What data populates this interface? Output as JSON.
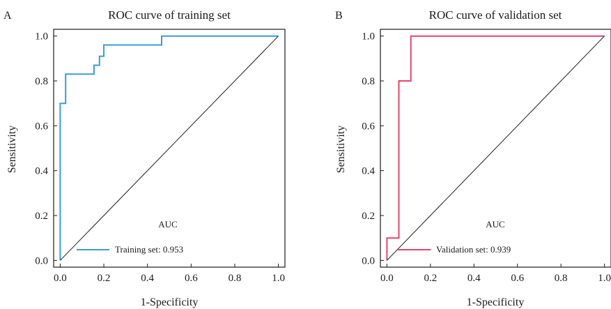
{
  "chart_data": [
    {
      "type": "line",
      "panel_label": "A",
      "title": "ROC curve of training set",
      "xlabel": "1-Specificity",
      "ylabel": "Sensitivity",
      "xlim": [
        -0.03,
        1.03
      ],
      "ylim": [
        -0.03,
        1.03
      ],
      "xticks": [
        "0.0",
        "0.2",
        "0.4",
        "0.6",
        "0.8",
        "1.0"
      ],
      "yticks": [
        "0.0",
        "0.2",
        "0.4",
        "0.6",
        "0.8",
        "1.0"
      ],
      "grid": false,
      "legend_title": "AUC",
      "legend_position": "bottom-right",
      "series": [
        {
          "name": "Training set: 0.953",
          "color": "#3a9bd9",
          "x": [
            0.0,
            0.0,
            0.0,
            0.0,
            0.0,
            0.025,
            0.025,
            0.025,
            0.155,
            0.155,
            0.18,
            0.18,
            0.2,
            0.2,
            0.2,
            0.465,
            0.465,
            1.0
          ],
          "y": [
            0.0,
            0.6,
            0.7,
            0.7,
            0.7,
            0.7,
            0.83,
            0.83,
            0.83,
            0.87,
            0.87,
            0.91,
            0.91,
            0.96,
            0.96,
            0.96,
            1.0,
            1.0
          ]
        },
        {
          "name": "",
          "color": "#1a1a1a",
          "x": [
            0.0,
            1.0
          ],
          "y": [
            0.0,
            1.0
          ]
        }
      ]
    },
    {
      "type": "line",
      "panel_label": "B",
      "title": "ROC curve of validation set",
      "xlabel": "1-Specificity",
      "ylabel": "Sensitivity",
      "xlim": [
        -0.03,
        1.03
      ],
      "ylim": [
        -0.03,
        1.03
      ],
      "xticks": [
        "0.0",
        "0.2",
        "0.4",
        "0.6",
        "0.8",
        "1.0"
      ],
      "yticks": [
        "0.0",
        "0.2",
        "0.4",
        "0.6",
        "0.8",
        "1.0"
      ],
      "grid": false,
      "legend_title": "AUC",
      "legend_position": "bottom-right",
      "series": [
        {
          "name": "Validation set: 0.939",
          "color": "#e8436d",
          "x": [
            0.0,
            0.0,
            0.055,
            0.055,
            0.11,
            0.11,
            1.0
          ],
          "y": [
            0.0,
            0.1,
            0.1,
            0.8,
            0.8,
            1.0,
            1.0
          ]
        },
        {
          "name": "",
          "color": "#1a1a1a",
          "x": [
            0.0,
            1.0
          ],
          "y": [
            0.0,
            1.0
          ]
        }
      ]
    }
  ]
}
